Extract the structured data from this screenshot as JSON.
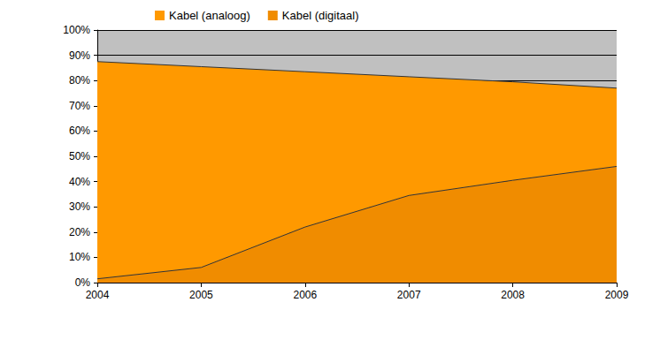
{
  "chart_data": {
    "type": "area",
    "stacked": true,
    "grid": true,
    "legend": "upper left",
    "categories": [
      "2004",
      "2005",
      "2006",
      "2007",
      "2008",
      "2009"
    ],
    "series": [
      {
        "name": "Kabel (analoog)",
        "color": "#ff9900",
        "values": [
          86,
          79.5,
          61.5,
          47,
          39,
          31
        ]
      },
      {
        "name": "Kabel (digitaal)",
        "color": "#f08c00",
        "values": [
          1.5,
          6,
          22,
          34.5,
          40.5,
          46
        ]
      }
    ],
    "ylim": [
      0,
      100
    ],
    "yticks": [
      {
        "value": 0,
        "label": "0%"
      },
      {
        "value": 10,
        "label": "10%"
      },
      {
        "value": 20,
        "label": "20%"
      },
      {
        "value": 30,
        "label": "30%"
      },
      {
        "value": 40,
        "label": "40%"
      },
      {
        "value": 50,
        "label": "50%"
      },
      {
        "value": 60,
        "label": "60%"
      },
      {
        "value": 70,
        "label": "70%"
      },
      {
        "value": 80,
        "label": "80%"
      },
      {
        "value": 90,
        "label": "90%"
      },
      {
        "value": 100,
        "label": "100%"
      }
    ]
  }
}
